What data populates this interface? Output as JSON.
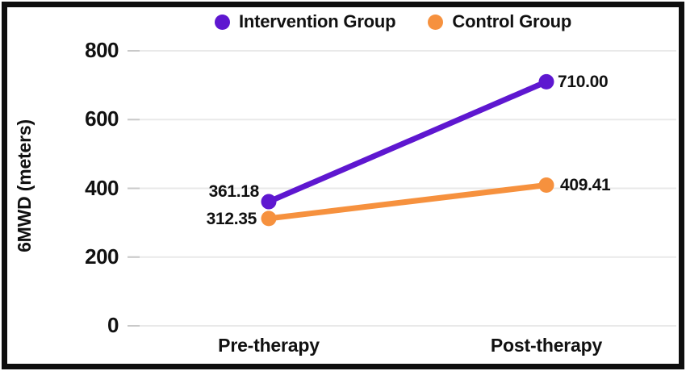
{
  "chart_data": {
    "type": "line",
    "title": "",
    "xlabel": "",
    "ylabel": "6MWD (meters)",
    "categories": [
      "Pre-therapy",
      "Post-therapy"
    ],
    "series": [
      {
        "name": "Intervention Group",
        "color": "#5e17d0",
        "values": [
          361.18,
          710.0
        ],
        "value_labels": [
          "361.18",
          "710.00"
        ]
      },
      {
        "name": "Control Group",
        "color": "#f6913e",
        "values": [
          312.35,
          409.41
        ],
        "value_labels": [
          "312.35",
          "409.41"
        ]
      }
    ],
    "ylim": [
      0,
      800
    ],
    "yticks": [
      0,
      200,
      400,
      600,
      800
    ],
    "grid": true,
    "legend_position": "top"
  },
  "colors": {
    "gridline": "#e9e9e9",
    "tick": "#c9c9c9",
    "frame": "#0e0e0e",
    "text": "#111111",
    "background": "#ffffff"
  }
}
